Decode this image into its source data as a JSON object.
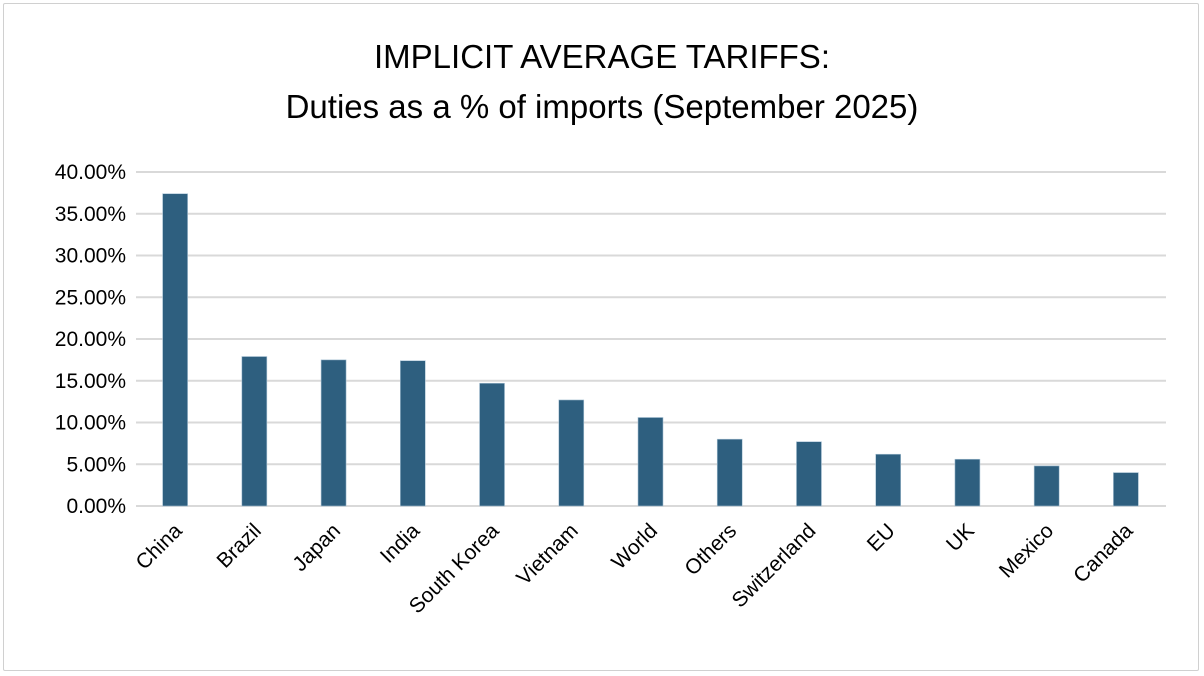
{
  "chart_data": {
    "type": "bar",
    "title": "IMPLICIT AVERAGE TARIFFS:",
    "subtitle": "Duties as a % of imports (September 2025)",
    "xlabel": "",
    "ylabel": "",
    "categories": [
      "China",
      "Brazil",
      "Japan",
      "India",
      "South Korea",
      "Vietnam",
      "World",
      "Others",
      "Switzerland",
      "EU",
      "UK",
      "Mexico",
      "Canada"
    ],
    "values": [
      37.4,
      17.9,
      17.5,
      17.4,
      14.7,
      12.7,
      10.6,
      8.0,
      7.7,
      6.2,
      5.6,
      4.8,
      4.0
    ],
    "ylim": [
      0,
      40
    ],
    "yticks": [
      0,
      5,
      10,
      15,
      20,
      25,
      30,
      35,
      40
    ],
    "ytick_labels": [
      "0.00%",
      "5.00%",
      "10.00%",
      "15.00%",
      "20.00%",
      "25.00%",
      "30.00%",
      "35.00%",
      "40.00%"
    ],
    "grid": true,
    "legend": "none",
    "bar_color": "#2e5f7f",
    "grid_color": "#d9d9d9"
  }
}
